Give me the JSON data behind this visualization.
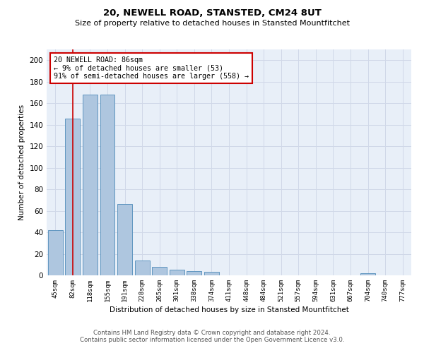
{
  "title": "20, NEWELL ROAD, STANSTED, CM24 8UT",
  "subtitle": "Size of property relative to detached houses in Stansted Mountfitchet",
  "xlabel": "Distribution of detached houses by size in Stansted Mountfitchet",
  "ylabel": "Number of detached properties",
  "footnote1": "Contains HM Land Registry data © Crown copyright and database right 2024.",
  "footnote2": "Contains public sector information licensed under the Open Government Licence v3.0.",
  "categories": [
    "45sqm",
    "82sqm",
    "118sqm",
    "155sqm",
    "191sqm",
    "228sqm",
    "265sqm",
    "301sqm",
    "338sqm",
    "374sqm",
    "411sqm",
    "448sqm",
    "484sqm",
    "521sqm",
    "557sqm",
    "594sqm",
    "631sqm",
    "667sqm",
    "704sqm",
    "740sqm",
    "777sqm"
  ],
  "values": [
    42,
    146,
    168,
    168,
    66,
    14,
    8,
    5,
    4,
    3,
    0,
    0,
    0,
    0,
    0,
    0,
    0,
    0,
    2,
    0,
    0
  ],
  "bar_color": "#aec6df",
  "bar_edgecolor": "#6096c0",
  "grid_color": "#d0d8e8",
  "bg_color": "#e8eff8",
  "vline_color": "#cc0000",
  "annotation_text": "20 NEWELL ROAD: 86sqm\n← 9% of detached houses are smaller (53)\n91% of semi-detached houses are larger (558) →",
  "annotation_box_color": "#cc0000",
  "ylim": [
    0,
    210
  ],
  "yticks": [
    0,
    20,
    40,
    60,
    80,
    100,
    120,
    140,
    160,
    180,
    200
  ]
}
